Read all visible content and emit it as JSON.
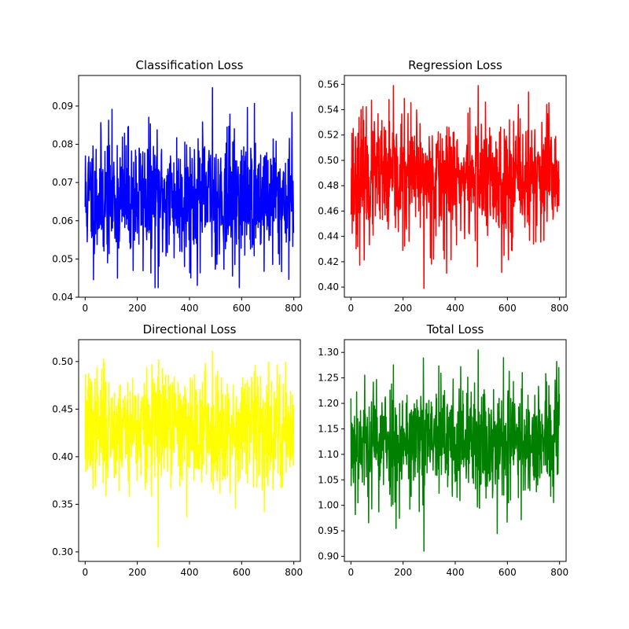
{
  "chart_data": [
    {
      "type": "line",
      "title": "Classification Loss",
      "color": "#0000ff",
      "xlim": [
        -25,
        825
      ],
      "ylim": [
        0.04,
        0.098
      ],
      "xticks": [
        0,
        200,
        400,
        600,
        800
      ],
      "yticks": [
        0.04,
        0.05,
        0.06,
        0.07,
        0.08,
        0.09
      ],
      "yformat": 2,
      "n_points": 800,
      "series": [
        {
          "mean": 0.066,
          "std": 0.0085,
          "min": 0.0425,
          "max": 0.0948,
          "seed": 11
        }
      ]
    },
    {
      "type": "line",
      "title": "Regression Loss",
      "color": "#ff0000",
      "xlim": [
        -25,
        825
      ],
      "ylim": [
        0.392,
        0.567
      ],
      "xticks": [
        0,
        200,
        400,
        600,
        800
      ],
      "yticks": [
        0.4,
        0.42,
        0.44,
        0.46,
        0.48,
        0.5,
        0.52,
        0.54,
        0.56
      ],
      "yformat": 2,
      "n_points": 800,
      "series": [
        {
          "mean": 0.485,
          "std": 0.025,
          "min": 0.399,
          "max": 0.559,
          "seed": 23
        }
      ]
    },
    {
      "type": "line",
      "title": "Directional Loss",
      "color": "#ffff00",
      "xlim": [
        -25,
        825
      ],
      "ylim": [
        0.29,
        0.523
      ],
      "xticks": [
        0,
        200,
        400,
        600,
        800
      ],
      "yticks": [
        0.3,
        0.35,
        0.4,
        0.45,
        0.5
      ],
      "yformat": 2,
      "n_points": 800,
      "series": [
        {
          "mean": 0.43,
          "std": 0.03,
          "min": 0.305,
          "max": 0.511,
          "seed": 37
        }
      ]
    },
    {
      "type": "line",
      "title": "Total Loss",
      "color": "#008000",
      "xlim": [
        -25,
        825
      ],
      "ylim": [
        0.89,
        1.325
      ],
      "xticks": [
        0,
        200,
        400,
        600,
        800
      ],
      "yticks": [
        0.9,
        0.95,
        1.0,
        1.05,
        1.1,
        1.15,
        1.2,
        1.25,
        1.3
      ],
      "yformat": 2,
      "n_points": 800,
      "series": [
        {
          "mean": 1.125,
          "std": 0.06,
          "min": 0.91,
          "max": 1.305,
          "seed": 53
        }
      ]
    }
  ]
}
